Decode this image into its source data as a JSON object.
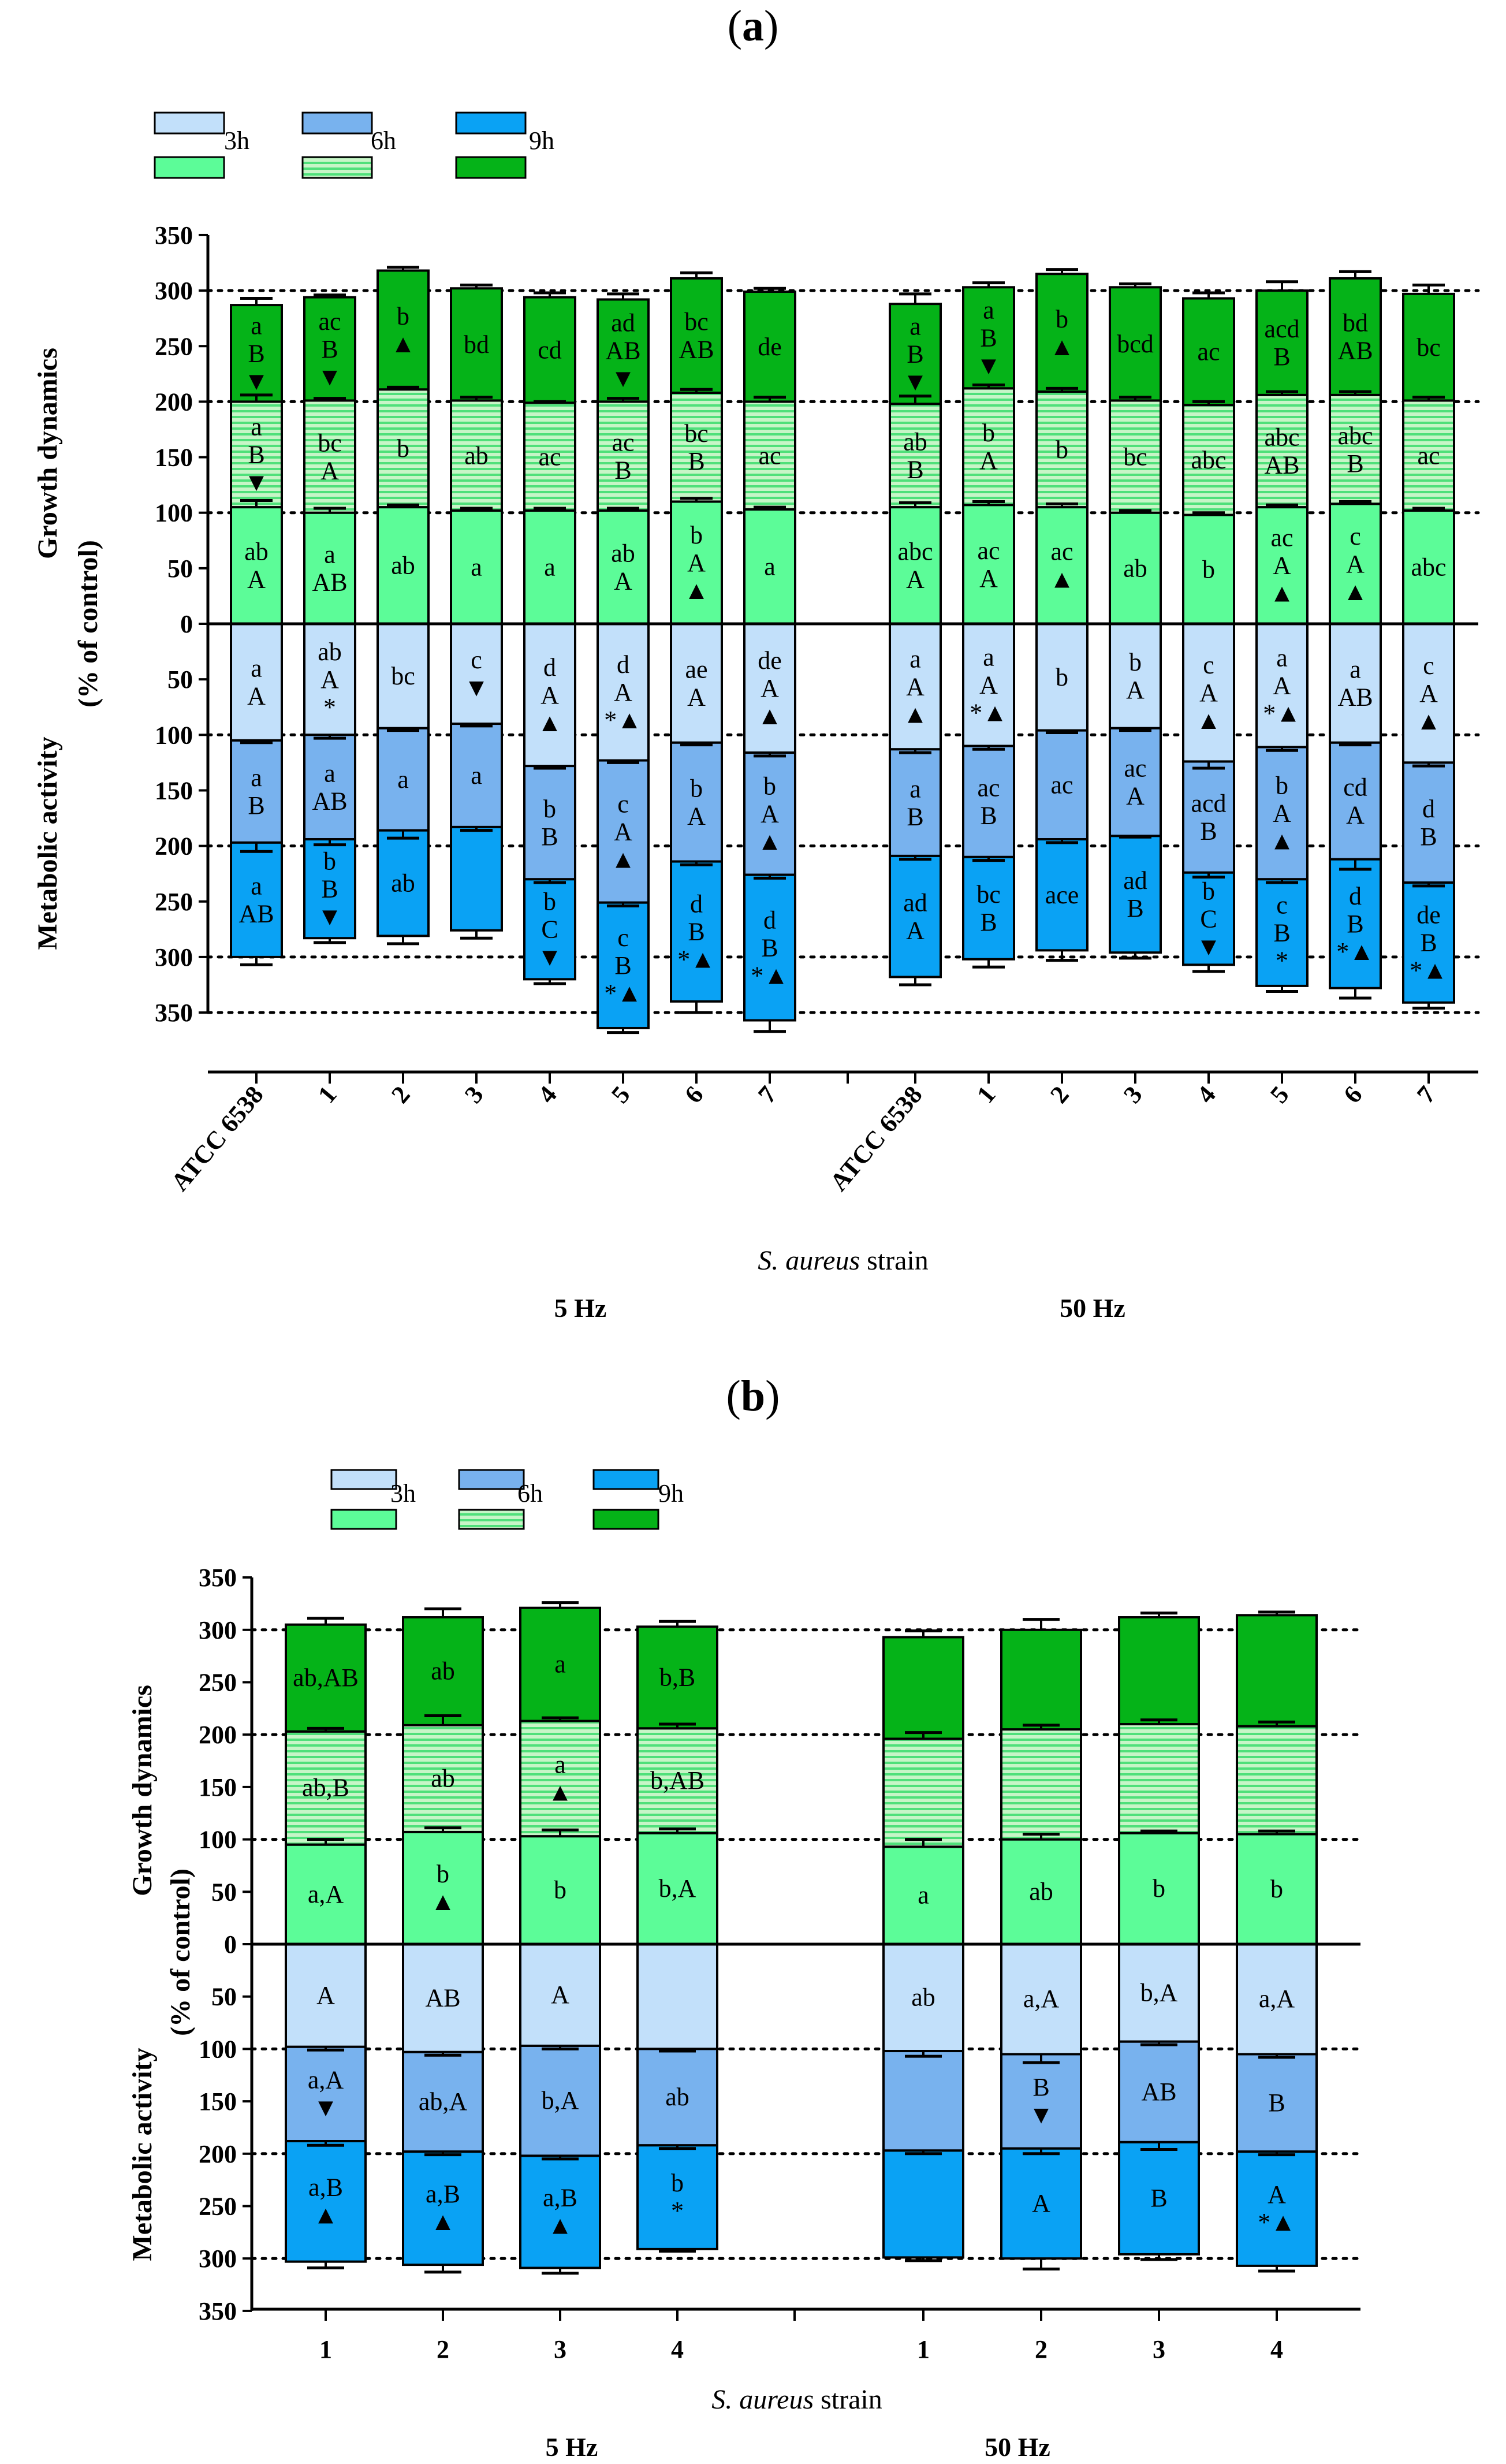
{
  "colors": {
    "gd3": "#5cfc98",
    "gd6": "#c7f5c7",
    "gd6_stripe": "#4fe07a",
    "gd9": "#05b318",
    "ma3": "#c2e0fa",
    "ma6": "#78b2ee",
    "ma9": "#0aa2f4",
    "outline": "#000000"
  },
  "figure": {
    "a": {
      "title_prefix": "(",
      "title_letter": "a",
      "title_suffix": ")",
      "legend": [
        "3h",
        "6h",
        "9h"
      ],
      "ylabel_top": "Growth dynamics",
      "ylabel_bottom": "Metabolic activity",
      "ylabel_unit": "(% of control)",
      "yticks": [
        "350",
        "300",
        "250",
        "200",
        "150",
        "100",
        "50",
        "0",
        "50",
        "100",
        "150",
        "200",
        "250",
        "300",
        "350"
      ],
      "xlabel_italic": "S. aureus",
      "xlabel_rest": " strain",
      "group_5hz": "5 Hz",
      "group_50hz": "50 Hz"
    },
    "b": {
      "title_prefix": "(",
      "title_letter": "b",
      "title_suffix": ")",
      "legend": [
        "3h",
        "6h",
        "9h"
      ],
      "ylabel_top": "Growth dynamics",
      "ylabel_bottom": "Metabolic activity",
      "ylabel_unit": "(% of control)",
      "yticks": [
        "350",
        "300",
        "250",
        "200",
        "150",
        "100",
        "50",
        "0",
        "50",
        "100",
        "150",
        "200",
        "250",
        "300",
        "350"
      ],
      "xlabel_italic": "S. aureus",
      "xlabel_rest": " strain",
      "group_5hz": "5 Hz",
      "group_50hz": "50 Hz"
    }
  },
  "chart_data": [
    {
      "panel": "a",
      "type": "bar",
      "subtype": "stacked, diverging (growth dynamics up, metabolic activity down)",
      "ylim": [
        -350,
        350
      ],
      "reference_lines": [
        100,
        200,
        300,
        -100,
        -200,
        -300,
        -350
      ],
      "categories": [
        "ATCC 6538",
        "1",
        "2",
        "3",
        "4",
        "5",
        "6",
        "7",
        "ATCC 6538",
        "1",
        "2",
        "3",
        "4",
        "5",
        "6",
        "7"
      ],
      "groups": [
        {
          "name": "5 Hz",
          "from": 0,
          "to": 7
        },
        {
          "name": "50 Hz",
          "from": 8,
          "to": 15
        }
      ],
      "series": [
        {
          "name": "Growth dynamics 3h",
          "values": [
            105,
            100,
            105,
            102,
            102,
            102,
            110,
            103,
            105,
            107,
            105,
            100,
            98,
            105,
            108,
            102
          ]
        },
        {
          "name": "Growth dynamics 6h",
          "values": [
            95,
            101,
            106,
            99,
            97,
            98,
            98,
            97,
            93,
            105,
            104,
            101,
            99,
            101,
            98,
            99
          ]
        },
        {
          "name": "Growth dynamics 9h",
          "values": [
            87,
            93,
            107,
            101,
            95,
            92,
            103,
            99,
            90,
            91,
            106,
            102,
            96,
            94,
            105,
            96
          ]
        },
        {
          "name": "Metabolic activity 3h",
          "values": [
            105,
            100,
            94,
            90,
            128,
            123,
            107,
            116,
            113,
            110,
            96,
            94,
            124,
            111,
            107,
            125
          ]
        },
        {
          "name": "Metabolic activity 6h",
          "values": [
            92,
            94,
            92,
            93,
            102,
            128,
            107,
            110,
            96,
            100,
            98,
            97,
            100,
            119,
            105,
            108
          ]
        },
        {
          "name": "Metabolic activity 9h",
          "values": [
            103,
            89,
            95,
            93,
            90,
            113,
            126,
            131,
            109,
            92,
            100,
            105,
            83,
            96,
            116,
            108
          ]
        }
      ],
      "error_tops": {
        "gd3": [
          111,
          104,
          107,
          104,
          104,
          104,
          113,
          105,
          109,
          110,
          108,
          102,
          100,
          107,
          110,
          104
        ],
        "gd6": [
          206,
          203,
          213,
          204,
          200,
          203,
          211,
          204,
          205,
          215,
          212,
          204,
          200,
          209,
          209,
          204
        ],
        "gd9": [
          293,
          296,
          321,
          305,
          298,
          297,
          316,
          302,
          297,
          307,
          319,
          306,
          298,
          308,
          317,
          305
        ],
        "ma3": [
          107,
          103,
          96,
          92,
          130,
          125,
          109,
          119,
          116,
          113,
          98,
          96,
          130,
          114,
          109,
          128
        ],
        "ma6": [
          205,
          199,
          193,
          186,
          233,
          254,
          217,
          229,
          212,
          213,
          197,
          192,
          228,
          233,
          221,
          236
        ],
        "ma9": [
          307,
          287,
          288,
          283,
          324,
          368,
          350,
          367,
          325,
          309,
          303,
          301,
          313,
          331,
          337,
          346
        ]
      },
      "labels": {
        "gd3": [
          "ab A",
          "a AB",
          "ab",
          "a",
          "a",
          "ab A",
          "b A ▲",
          "a",
          "abc A",
          "ac A",
          "ac ▲",
          "ab",
          "b",
          "ac A ▲",
          "c A ▲",
          "abc"
        ],
        "gd6": [
          "a B ▼",
          "bc A",
          "b",
          "ab",
          "ac",
          "ac B",
          "bc B",
          "ac",
          "ab B",
          "b A",
          "b",
          "bc",
          "abc",
          "abc AB",
          "abc B",
          "ac"
        ],
        "gd9": [
          "a B ▼",
          "ac B ▼",
          "b ▲",
          "bd",
          "cd",
          "ad AB ▼",
          "bc AB",
          "de",
          "a B ▼",
          "a B ▼",
          "b ▲",
          "bcd",
          "ac",
          "acd B",
          "bd AB",
          "bc"
        ],
        "ma3": [
          "a A",
          "ab A *",
          "bc",
          "c ▼",
          "d A ▲",
          "d A *▲",
          "ae A",
          "de A ▲",
          "a A ▲",
          "a A *▲",
          "b",
          "b A",
          "c A ▲",
          "a A *▲",
          "a AB",
          "c A ▲"
        ],
        "ma6": [
          "a B",
          "a AB",
          "a",
          "a",
          "b B",
          "c A ▲",
          "b A",
          "b A ▲",
          "a B",
          "ac B",
          "ac",
          "ac A",
          "acd B",
          "b A ▲",
          "cd A",
          "d B"
        ],
        "ma9": [
          "a AB",
          "b B ▼",
          "ab",
          "",
          "b C ▼",
          "c B *▲",
          "d B *▲",
          "d B *▲",
          "ad A",
          "bc B",
          "ace",
          "ad B",
          "b C ▼",
          "c B *",
          "d B *▲",
          "de B *▲"
        ]
      }
    },
    {
      "panel": "b",
      "type": "bar",
      "subtype": "stacked, diverging (growth dynamics up, metabolic activity down)",
      "ylim": [
        -350,
        350
      ],
      "reference_lines": [
        100,
        200,
        300,
        -100,
        -200,
        -300
      ],
      "categories": [
        "1",
        "2",
        "3",
        "4",
        "1",
        "2",
        "3",
        "4"
      ],
      "groups": [
        {
          "name": "5 Hz",
          "from": 0,
          "to": 3
        },
        {
          "name": "50 Hz",
          "from": 4,
          "to": 7
        }
      ],
      "series": [
        {
          "name": "Growth dynamics 3h",
          "values": [
            95,
            107,
            103,
            106,
            93,
            100,
            106,
            105
          ]
        },
        {
          "name": "Growth dynamics 6h",
          "values": [
            108,
            102,
            110,
            100,
            103,
            105,
            104,
            103
          ]
        },
        {
          "name": "Growth dynamics 9h",
          "values": [
            102,
            103,
            108,
            97,
            97,
            95,
            102,
            106
          ]
        },
        {
          "name": "Metabolic activity 3h",
          "values": [
            98,
            103,
            97,
            100,
            102,
            105,
            93,
            105
          ]
        },
        {
          "name": "Metabolic activity 6h",
          "values": [
            90,
            95,
            105,
            92,
            95,
            90,
            96,
            93
          ]
        },
        {
          "name": "Metabolic activity 9h",
          "values": [
            115,
            108,
            107,
            99,
            102,
            105,
            107,
            109
          ]
        }
      ],
      "error_tops": {
        "gd3": [
          100,
          111,
          109,
          110,
          100,
          105,
          108,
          108
        ],
        "gd6": [
          206,
          218,
          216,
          210,
          202,
          209,
          214,
          212
        ],
        "gd9": [
          311,
          320,
          326,
          308,
          299,
          310,
          316,
          317
        ],
        "ma3": [
          101,
          106,
          100,
          102,
          107,
          113,
          96,
          108
        ],
        "ma6": [
          192,
          201,
          205,
          195,
          200,
          200,
          196,
          201
        ],
        "ma9": [
          309,
          313,
          314,
          293,
          302,
          310,
          301,
          312
        ]
      },
      "labels": {
        "gd3": [
          "a,A",
          "b ▲",
          "b",
          "b,A",
          "a",
          "ab",
          "b",
          "b"
        ],
        "gd6": [
          "ab,B",
          "ab",
          "a ▲",
          "b,AB",
          "",
          "",
          "",
          ""
        ],
        "gd9": [
          "ab,AB",
          "ab",
          "a",
          "b,B",
          "",
          "",
          "",
          ""
        ],
        "ma3": [
          "A",
          "AB",
          "A",
          "",
          "ab",
          "a,A",
          "b,A",
          "a,A"
        ],
        "ma6": [
          "a,A ▼",
          "ab,A",
          "b,A",
          "ab",
          "",
          "B ▼",
          "AB",
          "B"
        ],
        "ma9": [
          "a,B ▲",
          "a,B ▲",
          "a,B ▲",
          "b *",
          "",
          "A",
          "B",
          "A *▲"
        ]
      }
    }
  ]
}
